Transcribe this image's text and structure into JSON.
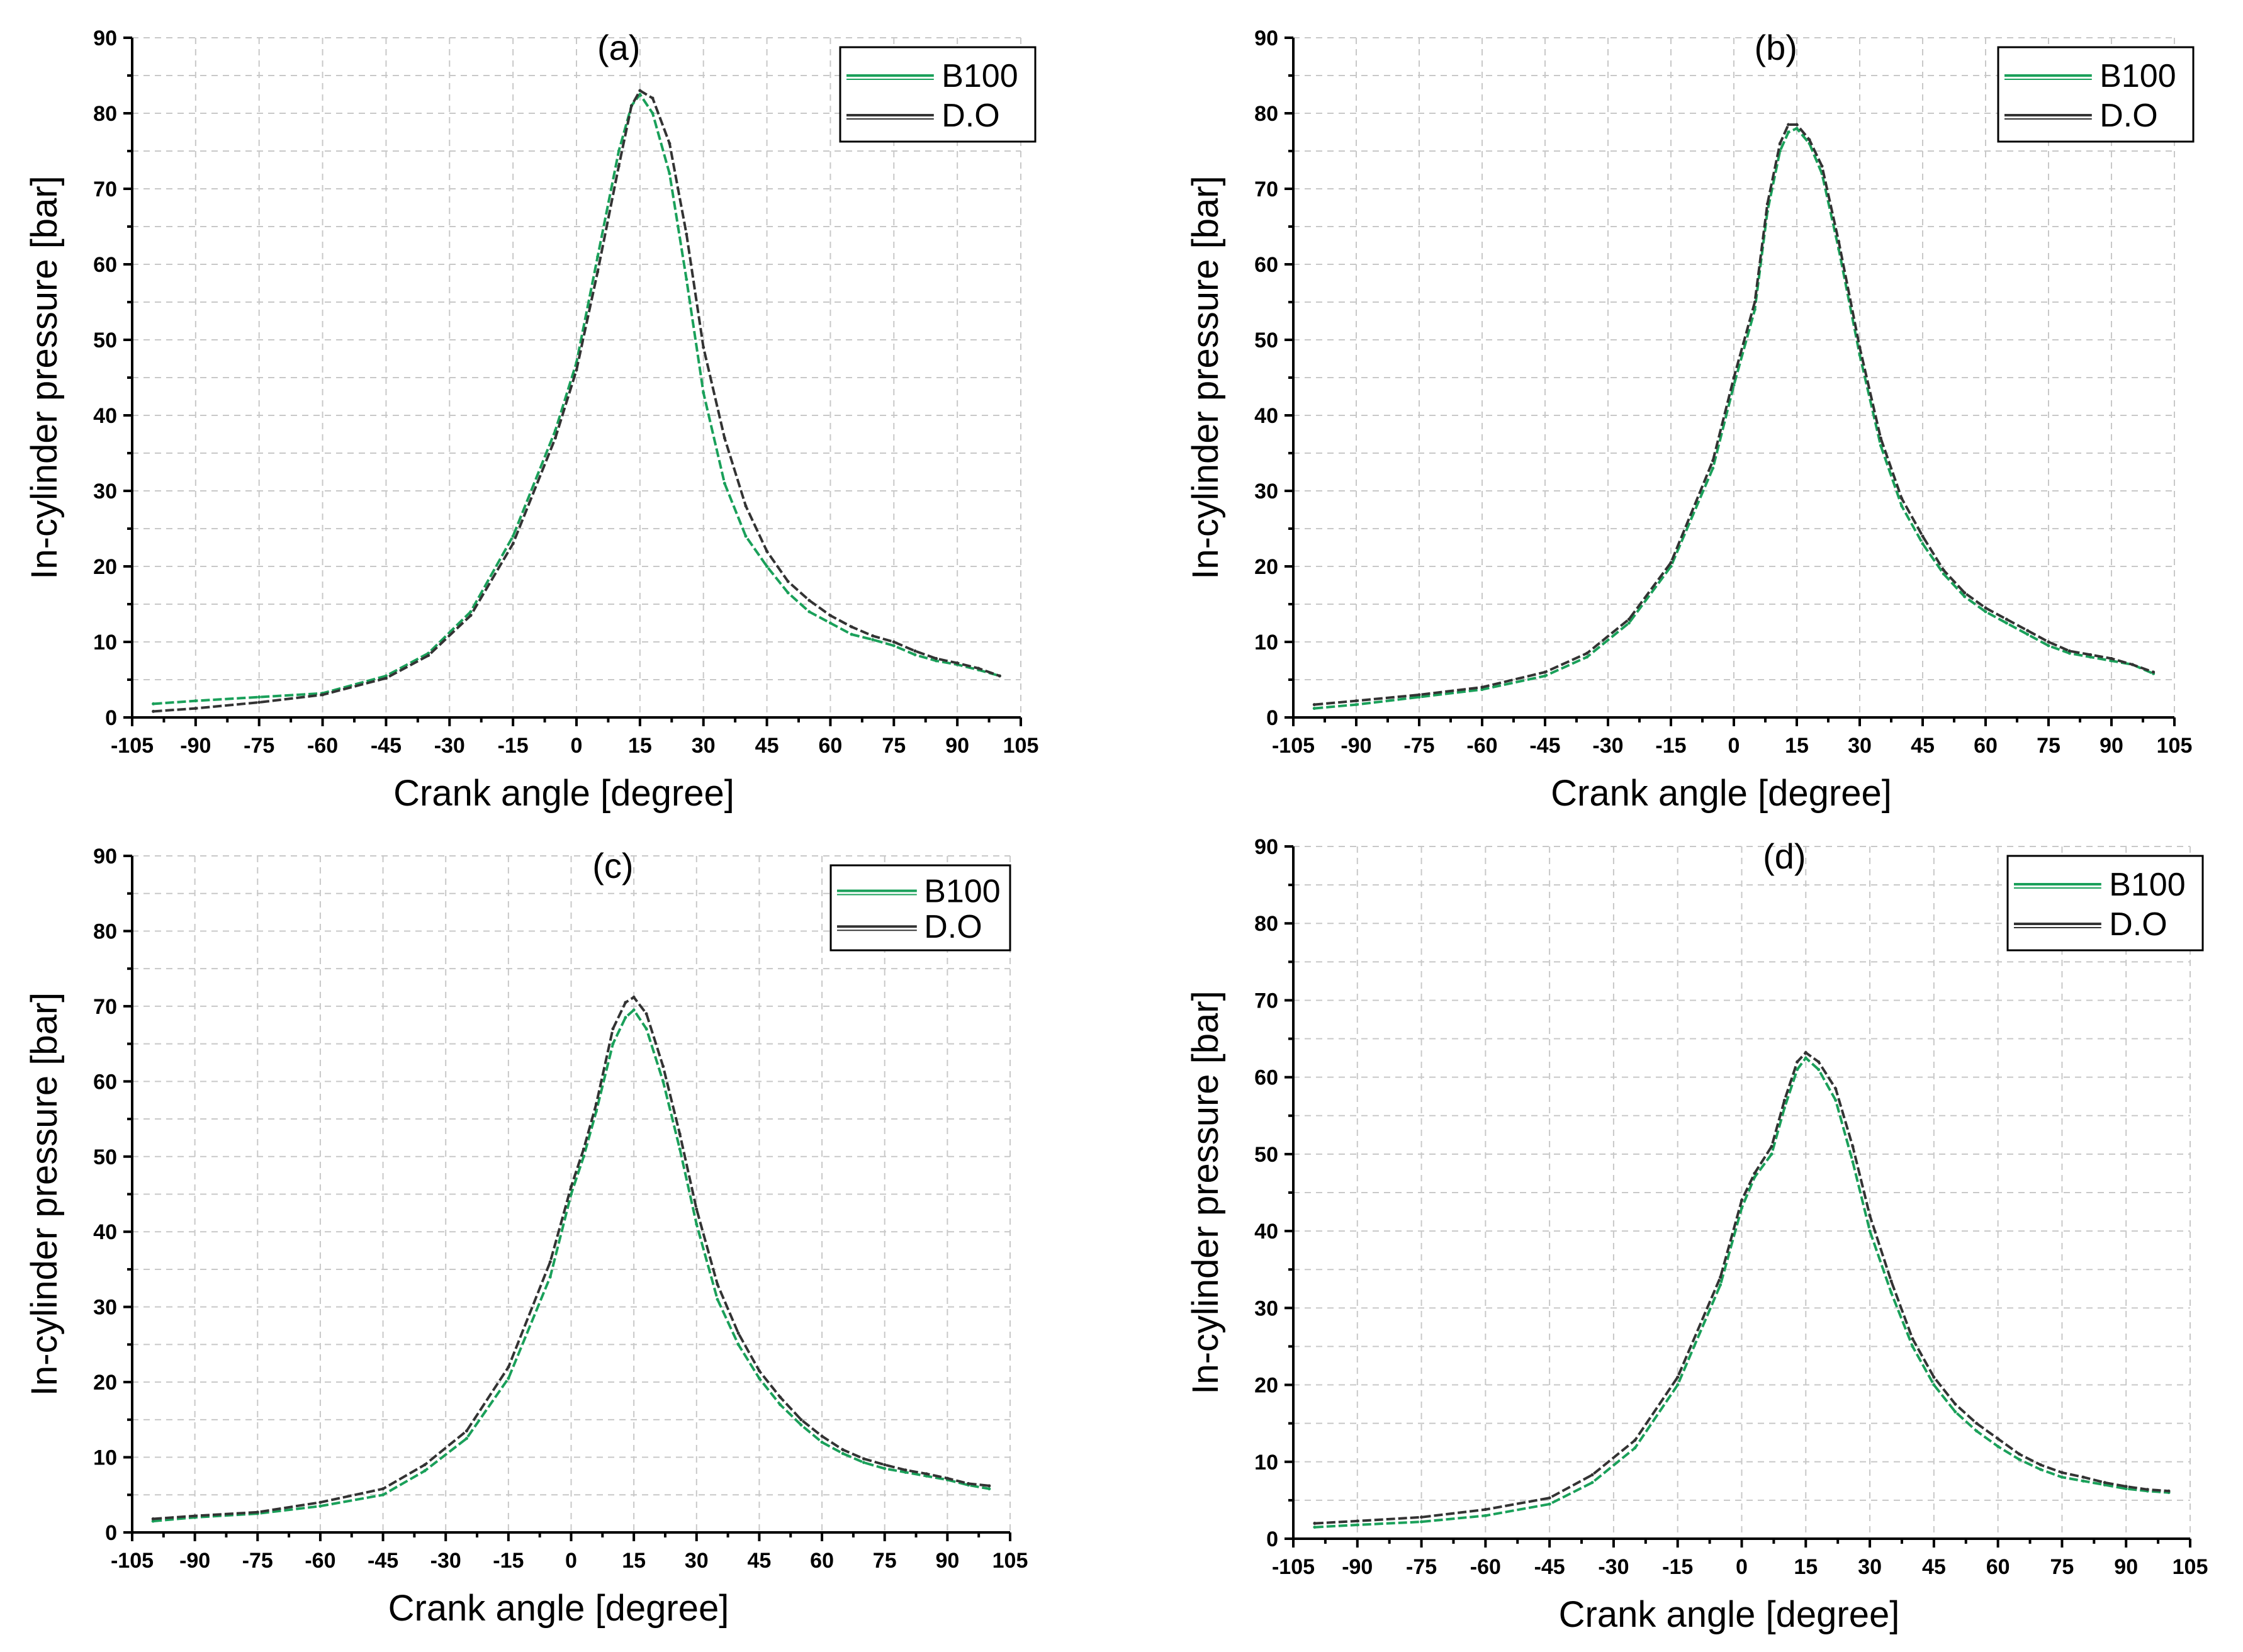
{
  "figure": {
    "layout": "2x2 grid"
  },
  "chart_data": [
    {
      "panel": "(a)",
      "type": "line",
      "title": "(a)",
      "xlabel": "Crank angle [degree]",
      "ylabel": "In-cylinder pressure  [bar]",
      "xlim": [
        -105,
        105
      ],
      "ylim": [
        0,
        90
      ],
      "xticks": [
        "-105",
        "-90",
        "-75",
        "-60",
        "-45",
        "-30",
        "-15",
        "0",
        "15",
        "30",
        "45",
        "60",
        "75",
        "90",
        "105"
      ],
      "yticks": [
        "0",
        "10",
        "20",
        "30",
        "40",
        "50",
        "60",
        "70",
        "80",
        "90"
      ],
      "grid": true,
      "legend_position": "top-right",
      "series": [
        {
          "name": "B100",
          "color": "#1aa05a",
          "x": [
            -100,
            -90,
            -75,
            -60,
            -45,
            -35,
            -25,
            -15,
            -5,
            0,
            5,
            10,
            13,
            15,
            18,
            22,
            26,
            30,
            35,
            40,
            45,
            50,
            55,
            60,
            65,
            70,
            75,
            80,
            85,
            90,
            95,
            100
          ],
          "y": [
            1.8,
            2.2,
            2.7,
            3.2,
            5.5,
            8.5,
            14,
            24,
            38,
            47,
            61,
            75,
            81,
            82.5,
            80,
            72,
            58,
            43,
            31,
            24,
            20,
            16.5,
            14,
            12.5,
            11,
            10.3,
            9.5,
            8.3,
            7.5,
            7,
            6.3,
            5.5
          ]
        },
        {
          "name": "D.O",
          "color": "#333333",
          "x": [
            -100,
            -90,
            -75,
            -60,
            -45,
            -35,
            -25,
            -15,
            -5,
            0,
            5,
            10,
            13,
            15,
            18,
            22,
            26,
            30,
            35,
            40,
            45,
            50,
            55,
            60,
            65,
            70,
            75,
            80,
            85,
            90,
            95,
            100
          ],
          "y": [
            0.8,
            1.2,
            2,
            3,
            5.2,
            8.2,
            13.5,
            23,
            37,
            46,
            59,
            73,
            81,
            83,
            82,
            76,
            64,
            49,
            37,
            28,
            22,
            18,
            15.5,
            13.5,
            12,
            10.8,
            10,
            8.8,
            7.8,
            7.2,
            6.5,
            5.5
          ]
        }
      ]
    },
    {
      "panel": "(b)",
      "type": "line",
      "title": "(b)",
      "xlabel": "Crank angle [degree]",
      "ylabel": "In-cylinder pressure  [bar]",
      "xlim": [
        -105,
        105
      ],
      "ylim": [
        0,
        90
      ],
      "xticks": [
        "-105",
        "-90",
        "-75",
        "-60",
        "-45",
        "-30",
        "-15",
        "0",
        "15",
        "30",
        "45",
        "60",
        "75",
        "90",
        "105"
      ],
      "yticks": [
        "0",
        "10",
        "20",
        "30",
        "40",
        "50",
        "60",
        "70",
        "80",
        "90"
      ],
      "grid": true,
      "legend_position": "top-right",
      "series": [
        {
          "name": "B100",
          "color": "#1aa05a",
          "x": [
            -100,
            -90,
            -75,
            -60,
            -45,
            -35,
            -25,
            -15,
            -5,
            0,
            5,
            8,
            11,
            13,
            15,
            18,
            21,
            25,
            30,
            35,
            40,
            45,
            50,
            55,
            60,
            65,
            70,
            75,
            80,
            85,
            90,
            95,
            100
          ],
          "y": [
            1.2,
            1.7,
            2.7,
            3.7,
            5.5,
            8,
            12.5,
            20,
            33,
            44,
            54,
            67,
            75,
            77.5,
            78,
            76,
            72,
            62,
            48,
            36,
            28,
            23,
            19,
            16,
            14,
            12.5,
            11,
            9.5,
            8.5,
            8,
            7.5,
            7,
            5.8
          ]
        },
        {
          "name": "D.O",
          "color": "#333333",
          "x": [
            -100,
            -90,
            -75,
            -60,
            -45,
            -35,
            -25,
            -15,
            -5,
            0,
            5,
            8,
            11,
            13,
            15,
            18,
            21,
            25,
            30,
            35,
            40,
            45,
            50,
            55,
            60,
            65,
            70,
            75,
            80,
            85,
            90,
            95,
            100
          ],
          "y": [
            1.7,
            2.2,
            3,
            4,
            6,
            8.5,
            13,
            20.5,
            34,
            45,
            55,
            68,
            76,
            78.5,
            78.5,
            76.5,
            73,
            63,
            49,
            37,
            29,
            24,
            19.5,
            16.5,
            14.5,
            13,
            11.5,
            10,
            8.8,
            8.3,
            7.8,
            7,
            6
          ]
        }
      ]
    },
    {
      "panel": "(c)",
      "type": "line",
      "title": "(c)",
      "xlabel": "Crank angle [degree]",
      "ylabel": "In-cylinder pressure  [bar]",
      "xlim": [
        -105,
        105
      ],
      "ylim": [
        0,
        90
      ],
      "xticks": [
        "-105",
        "-90",
        "-75",
        "-60",
        "-45",
        "-30",
        "-15",
        "0",
        "15",
        "30",
        "45",
        "60",
        "75",
        "90",
        "105"
      ],
      "yticks": [
        "0",
        "10",
        "20",
        "30",
        "40",
        "50",
        "60",
        "70",
        "80",
        "90"
      ],
      "grid": true,
      "legend_position": "top-right",
      "series": [
        {
          "name": "B100",
          "color": "#1aa05a",
          "x": [
            -100,
            -90,
            -75,
            -60,
            -45,
            -35,
            -25,
            -15,
            -5,
            0,
            3,
            6,
            10,
            13,
            15,
            18,
            22,
            26,
            30,
            35,
            40,
            45,
            50,
            55,
            60,
            65,
            70,
            75,
            80,
            85,
            90,
            95,
            100
          ],
          "y": [
            1.5,
            2,
            2.5,
            3.5,
            5,
            8.2,
            12.5,
            20.5,
            34,
            45,
            50,
            56,
            65,
            68.5,
            69.5,
            67,
            60,
            51,
            41,
            31,
            25,
            20.5,
            17,
            14.3,
            12,
            10.5,
            9.3,
            8.5,
            8,
            7.5,
            7,
            6.3,
            5.8
          ]
        },
        {
          "name": "D.O",
          "color": "#333333",
          "x": [
            -100,
            -90,
            -75,
            -60,
            -45,
            -35,
            -25,
            -15,
            -5,
            0,
            3,
            6,
            10,
            13,
            15,
            18,
            22,
            26,
            30,
            35,
            40,
            45,
            50,
            55,
            60,
            65,
            70,
            75,
            80,
            85,
            90,
            95,
            100
          ],
          "y": [
            1.8,
            2.2,
            2.7,
            4,
            5.8,
            9,
            13.5,
            22,
            36,
            46,
            51,
            57,
            67,
            70.5,
            71.2,
            69,
            62,
            53,
            43,
            33,
            26.5,
            21.5,
            18,
            15,
            12.8,
            11,
            9.8,
            9,
            8.3,
            7.8,
            7.2,
            6.5,
            6.2
          ]
        }
      ]
    },
    {
      "panel": "(d)",
      "type": "line",
      "title": "(d)",
      "xlabel": "Crank angle [degree]",
      "ylabel": "In-cylinder pressure  [bar]",
      "xlim": [
        -105,
        105
      ],
      "ylim": [
        0,
        90
      ],
      "xticks": [
        "-105",
        "-90",
        "-75",
        "-60",
        "-45",
        "-30",
        "-15",
        "0",
        "15",
        "30",
        "45",
        "60",
        "75",
        "90",
        "105"
      ],
      "yticks": [
        "0",
        "10",
        "20",
        "30",
        "40",
        "50",
        "60",
        "70",
        "80",
        "90"
      ],
      "grid": true,
      "legend_position": "top-right",
      "series": [
        {
          "name": "B100",
          "color": "#1aa05a",
          "x": [
            -100,
            -90,
            -75,
            -60,
            -45,
            -35,
            -25,
            -15,
            -5,
            0,
            3,
            7,
            10,
            13,
            15,
            18,
            22,
            26,
            30,
            35,
            40,
            45,
            50,
            55,
            60,
            65,
            70,
            75,
            80,
            85,
            90,
            95,
            100
          ],
          "y": [
            1.5,
            1.8,
            2.2,
            3,
            4.5,
            7.3,
            11.8,
            20,
            33,
            43,
            47,
            50,
            56,
            61,
            62.5,
            61,
            57,
            49,
            40,
            32,
            25,
            20,
            16.5,
            14,
            12,
            10.3,
            9,
            8,
            7.5,
            7,
            6.5,
            6.2,
            6
          ]
        },
        {
          "name": "D.O",
          "color": "#333333",
          "x": [
            -100,
            -90,
            -75,
            -60,
            -45,
            -35,
            -25,
            -15,
            -5,
            0,
            3,
            7,
            10,
            13,
            15,
            18,
            22,
            26,
            30,
            35,
            40,
            45,
            50,
            55,
            60,
            65,
            70,
            75,
            80,
            85,
            90,
            95,
            100
          ],
          "y": [
            2,
            2.3,
            2.8,
            3.8,
            5.3,
            8.3,
            12.8,
            21,
            34,
            44,
            47.5,
            51,
            57,
            62,
            63.2,
            62,
            58.5,
            51,
            42,
            33.5,
            26,
            21,
            17.5,
            15,
            13,
            11,
            9.6,
            8.6,
            8,
            7.3,
            6.8,
            6.4,
            6.2
          ]
        }
      ]
    }
  ]
}
